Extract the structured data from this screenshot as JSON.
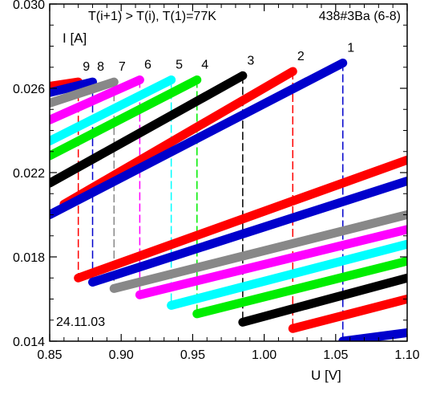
{
  "chart_data": {
    "type": "line",
    "xlabel": "U [V]",
    "ylabel": "I [A]",
    "xlim": [
      0.85,
      1.1
    ],
    "ylim": [
      0.014,
      0.03
    ],
    "x_ticks": [
      "0.85",
      "0.90",
      "0.95",
      "1.00",
      "1.05",
      "1.10"
    ],
    "y_ticks": [
      "0.014",
      "0.018",
      "0.022",
      "0.026",
      "0.030"
    ],
    "annotations": {
      "condition": "T(i+1) > T(i), T(1)=77K",
      "sample": "438#3Ba (6-8)",
      "date": "24.11.03"
    },
    "series": [
      {
        "label": "1",
        "color": "#0000cc",
        "upper": [
          [
            0.85,
            0.02
          ],
          [
            1.055,
            0.0272
          ]
        ],
        "jump_u": 1.055,
        "lower": [
          [
            1.055,
            0.014
          ],
          [
            1.1,
            0.0144
          ]
        ]
      },
      {
        "label": "2",
        "color": "#ff0000",
        "upper": [
          [
            0.86,
            0.0205
          ],
          [
            1.02,
            0.0268
          ]
        ],
        "jump_u": 1.02,
        "lower": [
          [
            1.02,
            0.0146
          ],
          [
            1.1,
            0.016
          ]
        ]
      },
      {
        "label": "3",
        "color": "#000000",
        "upper": [
          [
            0.85,
            0.0215
          ],
          [
            0.985,
            0.0266
          ]
        ],
        "jump_u": 0.985,
        "lower": [
          [
            0.985,
            0.0149
          ],
          [
            1.1,
            0.017
          ]
        ]
      },
      {
        "label": "4",
        "color": "#00ee00",
        "upper": [
          [
            0.85,
            0.0228
          ],
          [
            0.953,
            0.0264
          ]
        ],
        "jump_u": 0.953,
        "lower": [
          [
            0.953,
            0.0153
          ],
          [
            1.1,
            0.0178
          ]
        ]
      },
      {
        "label": "5",
        "color": "#00ffff",
        "upper": [
          [
            0.85,
            0.0235
          ],
          [
            0.935,
            0.0264
          ]
        ],
        "jump_u": 0.935,
        "lower": [
          [
            0.935,
            0.0157
          ],
          [
            1.1,
            0.0186
          ]
        ]
      },
      {
        "label": "6",
        "color": "#ff00ff",
        "upper": [
          [
            0.85,
            0.0245
          ],
          [
            0.913,
            0.0264
          ]
        ],
        "jump_u": 0.913,
        "lower": [
          [
            0.913,
            0.0162
          ],
          [
            1.1,
            0.0193
          ]
        ]
      },
      {
        "label": "7",
        "color": "#888888",
        "upper": [
          [
            0.85,
            0.0253
          ],
          [
            0.895,
            0.0263
          ]
        ],
        "jump_u": 0.895,
        "lower": [
          [
            0.895,
            0.0165
          ],
          [
            1.1,
            0.02
          ]
        ]
      },
      {
        "label": "8",
        "color": "#0000cc",
        "upper": [
          [
            0.85,
            0.0258
          ],
          [
            0.88,
            0.0263
          ]
        ],
        "jump_u": 0.88,
        "lower": [
          [
            0.88,
            0.0168
          ],
          [
            1.1,
            0.0216
          ]
        ]
      },
      {
        "label": "9",
        "color": "#ff0000",
        "upper": [
          [
            0.85,
            0.0261
          ],
          [
            0.87,
            0.0263
          ]
        ],
        "jump_u": 0.87,
        "lower": [
          [
            0.87,
            0.017
          ],
          [
            1.1,
            0.0226
          ]
        ]
      }
    ]
  }
}
